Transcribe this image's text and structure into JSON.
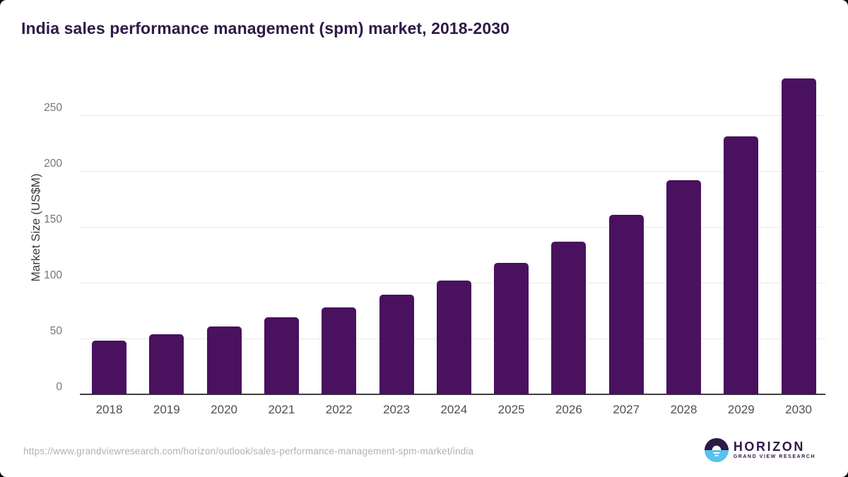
{
  "header": {
    "title": "India sales performance management (spm) market, 2018-2030"
  },
  "chart_data": {
    "type": "bar",
    "title": "India sales performance management (spm) market, 2018-2030",
    "categories": [
      "2018",
      "2019",
      "2020",
      "2021",
      "2022",
      "2023",
      "2024",
      "2025",
      "2026",
      "2027",
      "2028",
      "2029",
      "2030"
    ],
    "values": [
      48,
      54,
      61,
      69,
      78,
      89,
      102,
      118,
      137,
      161,
      192,
      231,
      283
    ],
    "xlabel": "",
    "ylabel": "Market Size (US$M)",
    "ylim": [
      0,
      290
    ],
    "yticks": [
      0,
      50,
      100,
      150,
      200,
      250
    ],
    "grid": true,
    "legend": false,
    "bar_color": "#49115e"
  },
  "footer": {
    "source_url": "https://www.grandviewresearch.com/horizon/outlook/sales-performance-management-spm-market/india",
    "brand": {
      "name": "HORIZON",
      "subtitle": "GRAND VIEW RESEARCH"
    }
  },
  "colors": {
    "title": "#2e1a47",
    "bar": "#49115e",
    "gridline": "#e9e9e9",
    "axis_line": "#3f3f3f",
    "tick_label": "#757575",
    "x_label": "#4f4f4f",
    "url_text": "#b1b1b1",
    "logo_blue": "#58c1ee",
    "logo_purple": "#2e1a47"
  }
}
